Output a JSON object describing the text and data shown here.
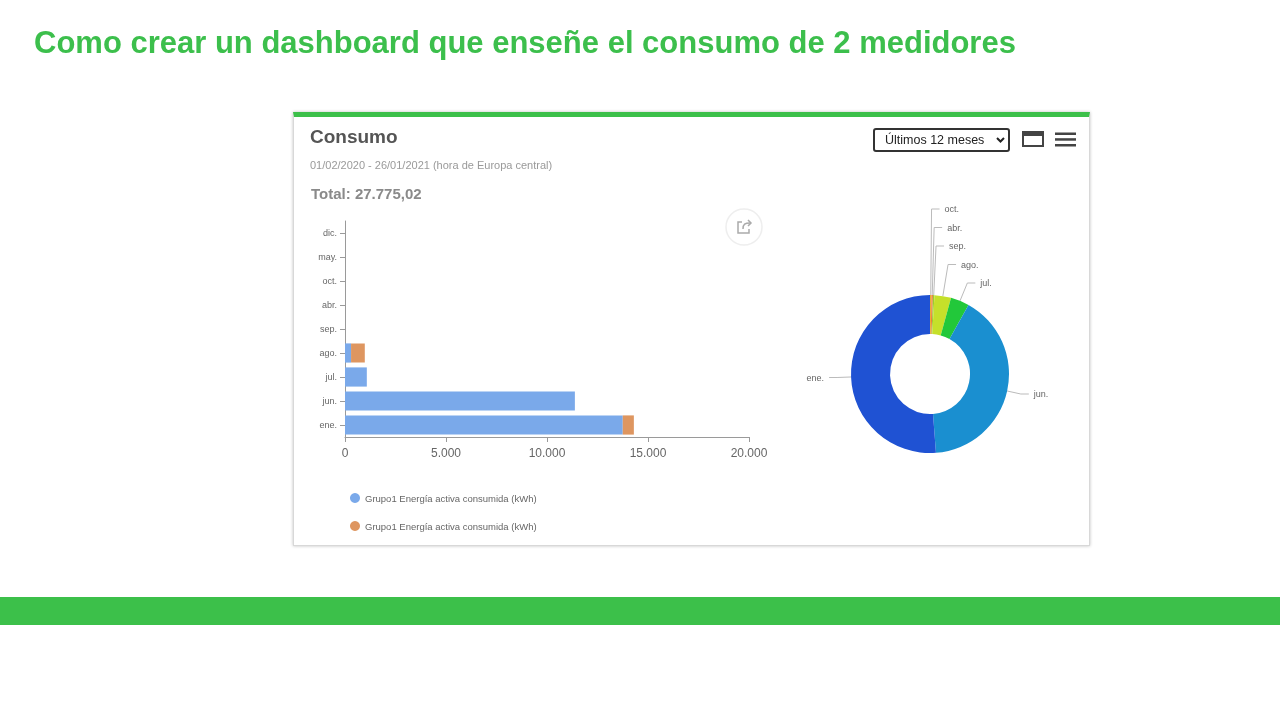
{
  "chart_data": [
    {
      "type": "bar",
      "title": "Como crear un dashboard que enseñe el consumo de 2 medidores",
      "subtitle": "Consumo",
      "annotations": [
        "01/02/2020 - 26/01/2021 (hora de Europa central)",
        "Total: 27.775,02",
        "Últimos 12 meses"
      ],
      "orientation": "horizontal",
      "stacked": true,
      "categories": [
        "dic.",
        "may.",
        "oct.",
        "abr.",
        "sep.",
        "ago.",
        "jul.",
        "jun.",
        "ene."
      ],
      "series": [
        {
          "name": "Grupo1 Energía activa consumida (kWh)",
          "color": "#7aa9ea",
          "values": [
            0,
            0,
            0,
            0,
            0,
            300,
            1080,
            11380,
            13750
          ]
        },
        {
          "name": "Grupo1 Energía activa consumida (kWh)",
          "color": "#de9660",
          "values": [
            0,
            0,
            0,
            0,
            0,
            680,
            0,
            0,
            550
          ]
        }
      ],
      "xlim": [
        0,
        20000
      ],
      "xticks": [
        0,
        {
          "value": 5000,
          "label": "5.000"
        },
        {
          "value": 10000,
          "label": "10.000"
        },
        {
          "value": 15000,
          "label": "15.000"
        },
        {
          "value": 20000,
          "label": "20.000"
        }
      ],
      "grid": false,
      "legend": "bottom left"
    },
    {
      "type": "donut",
      "categories": [
        "oct.",
        "abr.",
        "sep.",
        "ago.",
        "jul.",
        "jun.",
        "ene."
      ],
      "values": [
        0.3,
        0.3,
        0.3,
        3.4,
        3.8,
        40.7,
        51.2
      ],
      "colors": [
        "#e8b030",
        "#f07a3a",
        "#9acd32",
        "#c5e02a",
        "#22c83a",
        "#1a8fd0",
        "#1f52d3"
      ]
    }
  ]
}
